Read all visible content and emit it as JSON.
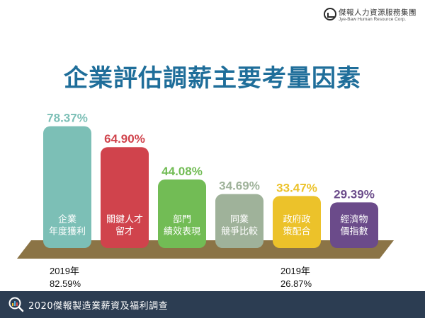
{
  "header": {
    "company_name": "傑報人力資源服務集團",
    "company_name_en": "Jye-Baw Human Resource Corp."
  },
  "chart_data": {
    "type": "bar",
    "title": "企業評估調薪主要考量因素",
    "categories": [
      [
        "企業",
        "年度獲利"
      ],
      [
        "關鍵人才",
        "留才"
      ],
      [
        "部門",
        "績效表現"
      ],
      [
        "同業",
        "競爭比較"
      ],
      [
        "政府政",
        "策配合"
      ],
      [
        "經濟物",
        "價指數"
      ]
    ],
    "values": [
      78.37,
      64.9,
      44.08,
      34.69,
      33.47,
      29.39
    ],
    "value_labels": [
      "78.37%",
      "64.90%",
      "44.08%",
      "34.69%",
      "33.47%",
      "29.39%"
    ],
    "colors": [
      "#7cbfb6",
      "#d0434c",
      "#72bc55",
      "#9fb29a",
      "#ecc22a",
      "#6b4b8a"
    ],
    "annotations": [
      {
        "category_index": 0,
        "lines": [
          "2019年",
          "82.59%"
        ]
      },
      {
        "category_index": 4,
        "lines": [
          "2019年",
          "26.87%"
        ]
      }
    ],
    "ylim": [
      0,
      80
    ]
  },
  "footer": {
    "text": "2020傑報製造業薪資及福利調查",
    "band_color": "#2c3d52"
  }
}
